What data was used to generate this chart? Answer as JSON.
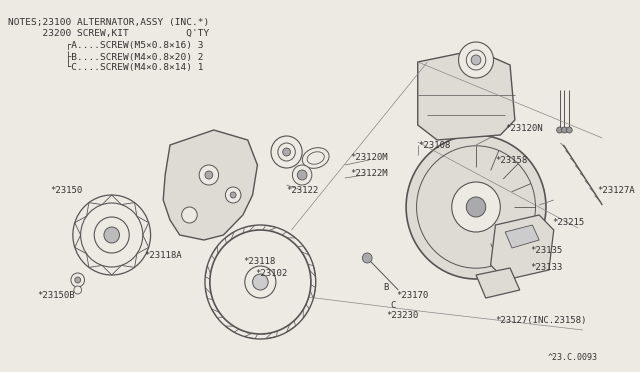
{
  "bg_color": "#ede9e3",
  "line_color": "#555555",
  "text_color": "#333333",
  "notes_lines": [
    "NOTES;23100 ALTERNATOR,ASSY (INC.*)",
    "      23200 SCREW,KIT          Q'TY",
    "          ┌A....SCREW(M5×0.8×16) 3",
    "          ├B....SCREW(M4×0.8×20) 2",
    "          └C....SCREW(M4×0.8×14) 1"
  ],
  "footer_text": "^23.C.0093",
  "font_size_notes": 6.8,
  "font_size_labels": 6.5
}
